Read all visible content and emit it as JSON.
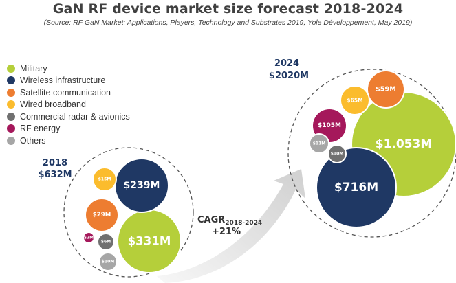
{
  "title": "GaN RF device market size forecast 2018-2024",
  "subtitle": "(Source: RF GaN Market: Applications, Players, Technology and Substrates 2019, Yole Développement, May 2019)",
  "chart_data": {
    "type": "bubble",
    "series": [
      {
        "name": "Military",
        "color": "#b5cf3a"
      },
      {
        "name": "Wireless infrastructure",
        "color": "#1f3864"
      },
      {
        "name": "Satellite communication",
        "color": "#ed7d31"
      },
      {
        "name": "Wired broadband",
        "color": "#fbbc2d"
      },
      {
        "name": "Commercial radar & avionics",
        "color": "#707070"
      },
      {
        "name": "RF energy",
        "color": "#a5185b"
      },
      {
        "name": "Others",
        "color": "#a6a6a6"
      }
    ],
    "groups": [
      {
        "year": "2018",
        "total_label": "$632M",
        "total": 632,
        "values": [
          {
            "series": "Military",
            "value": 331,
            "label": "$331M"
          },
          {
            "series": "Wireless infrastructure",
            "value": 239,
            "label": "$239M"
          },
          {
            "series": "Satellite communication",
            "value": 29,
            "label": "$29M"
          },
          {
            "series": "Wired broadband",
            "value": 15,
            "label": "$15M"
          },
          {
            "series": "Commercial radar & avionics",
            "value": 6,
            "label": "$6M"
          },
          {
            "series": "RF energy",
            "value": 2,
            "label": "$2M"
          },
          {
            "series": "Others",
            "value": 10,
            "label": "$10M"
          }
        ]
      },
      {
        "year": "2024",
        "total_label": "$2020M",
        "total": 2020,
        "values": [
          {
            "series": "Military",
            "value": 1053,
            "label": "$1.053M"
          },
          {
            "series": "Wireless infrastructure",
            "value": 716,
            "label": "$716M"
          },
          {
            "series": "Satellite communication",
            "value": 59,
            "label": "$59M"
          },
          {
            "series": "Wired broadband",
            "value": 65,
            "label": "$65M"
          },
          {
            "series": "Commercial radar & avionics",
            "value": 10,
            "label": "$10M"
          },
          {
            "series": "RF energy",
            "value": 105,
            "label": "$105M"
          },
          {
            "series": "Others",
            "value": 11,
            "label": "$11M"
          }
        ]
      }
    ],
    "annotation": {
      "cagr_label": "CAGR",
      "cagr_subscript": "2018-2024",
      "cagr_value": "+21%"
    }
  }
}
